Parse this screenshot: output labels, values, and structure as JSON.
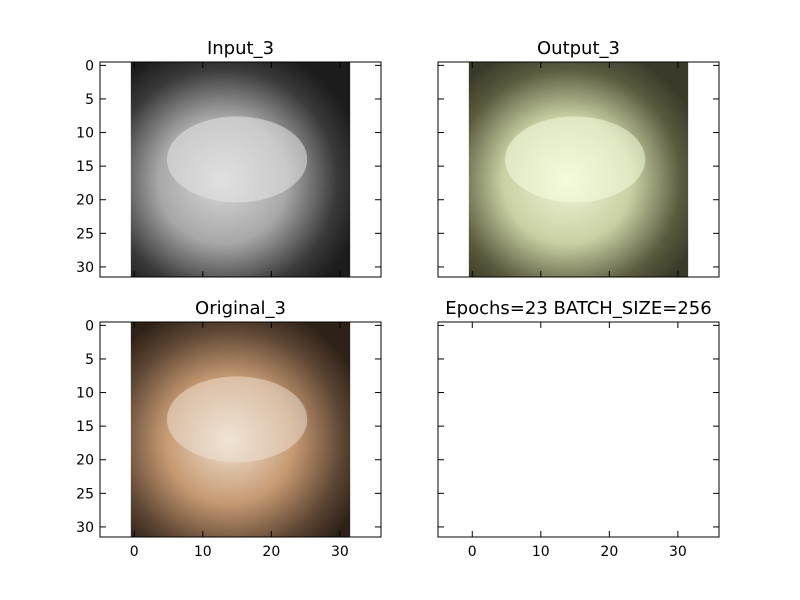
{
  "chart_data": [
    {
      "type": "image",
      "title": "Input_3",
      "colormap": "grayscale",
      "xlim": [
        -5,
        36
      ],
      "ylim": [
        31.5,
        -0.5
      ],
      "xticks": [
        0,
        10,
        20,
        30
      ],
      "yticks": [
        0,
        5,
        10,
        15,
        20,
        25,
        30
      ],
      "show_x_tick_labels": false,
      "show_y_tick_labels": true
    },
    {
      "type": "image",
      "title": "Output_3",
      "colormap": "color",
      "xlim": [
        -5,
        36
      ],
      "ylim": [
        31.5,
        -0.5
      ],
      "xticks": [
        0,
        10,
        20,
        30
      ],
      "yticks": [
        0,
        5,
        10,
        15,
        20,
        25,
        30
      ],
      "show_x_tick_labels": false,
      "show_y_tick_labels": false
    },
    {
      "type": "image",
      "title": "Original_3",
      "colormap": "color",
      "xlim": [
        -5,
        36
      ],
      "ylim": [
        31.5,
        -0.5
      ],
      "xticks": [
        0,
        10,
        20,
        30
      ],
      "yticks": [
        0,
        5,
        10,
        15,
        20,
        25,
        30
      ],
      "show_x_tick_labels": true,
      "show_y_tick_labels": true
    },
    {
      "type": "empty",
      "title": "Epochs=23 BATCH_SIZE=256",
      "xlim": [
        -5,
        36
      ],
      "ylim": [
        31.5,
        -0.5
      ],
      "xticks": [
        0,
        10,
        20,
        30
      ],
      "yticks": [
        0,
        5,
        10,
        15,
        20,
        25,
        30
      ],
      "show_x_tick_labels": true,
      "show_y_tick_labels": false
    }
  ]
}
